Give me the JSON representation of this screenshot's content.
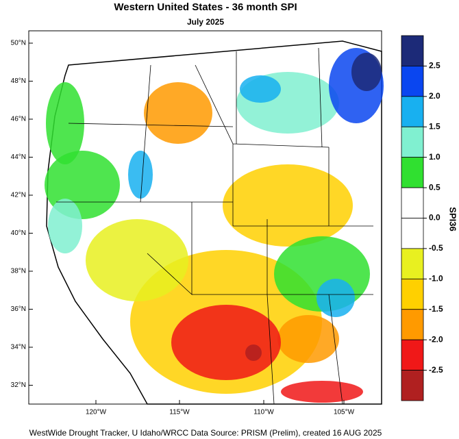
{
  "header": {
    "title": "Western United States - 36 month SPI",
    "subtitle": "July 2025"
  },
  "map": {
    "lat_ticks": [
      "50°N",
      "48°N",
      "46°N",
      "44°N",
      "42°N",
      "40°N",
      "38°N",
      "36°N",
      "34°N",
      "32°N"
    ],
    "lon_ticks": [
      "120°W",
      "115°W",
      "110°W",
      "105°W"
    ]
  },
  "colorbar": {
    "title": "SPI36",
    "colors": [
      "#1c2a78",
      "#0a46f0",
      "#18b0f0",
      "#80f0d0",
      "#30e030",
      "#ffffff",
      "#ffffff",
      "#e8f020",
      "#ffd000",
      "#ff9a00",
      "#f01818",
      "#b02020"
    ],
    "ticks": [
      2.5,
      {
        "value": 2,
        "label": "2.0"
      },
      1.5,
      {
        "value": 1,
        "label": "1.0"
      },
      0.5,
      {
        "value": 0,
        "label": "0.0"
      },
      -0.5,
      {
        "value": -1,
        "label": "-1.0"
      },
      -1.5,
      {
        "value": -2,
        "label": "-2.0"
      },
      -2.5
    ]
  },
  "footer": {
    "credit": "WestWide Drought Tracker, U Idaho/WRCC Data Source: PRISM (Prelim), created 16 AUG 2025"
  }
}
